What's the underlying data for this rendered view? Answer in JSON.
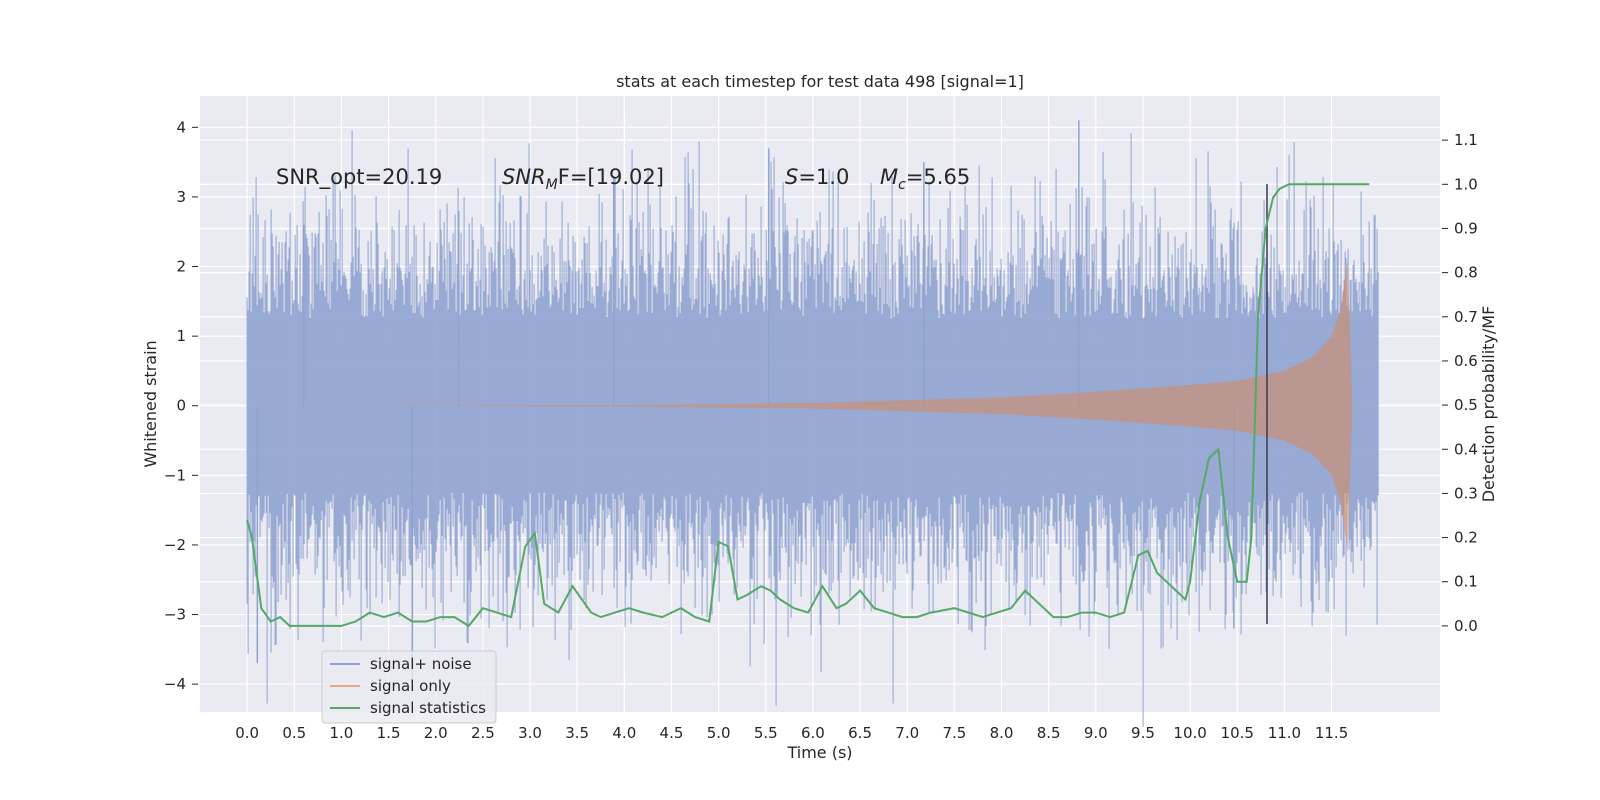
{
  "chart_data": {
    "type": "line",
    "title": "stats at each timestep for test data 498 [signal=1]",
    "xlabel": "Time (s)",
    "ylabel_left": "Whitened strain",
    "ylabel_right": "Detection probability/MF",
    "xlim": [
      -0.5,
      12.65
    ],
    "ylim_left": [
      -4.4,
      4.45
    ],
    "ylim_right": [
      -0.195,
      1.2
    ],
    "grid": true,
    "legend_position": "lower-left",
    "x_ticks": [
      "0.0",
      "0.5",
      "1.0",
      "1.5",
      "2.0",
      "2.5",
      "3.0",
      "3.5",
      "4.0",
      "4.5",
      "5.0",
      "5.5",
      "6.0",
      "6.5",
      "7.0",
      "7.5",
      "8.0",
      "8.5",
      "9.0",
      "9.5",
      "10.0",
      "10.5",
      "11.0",
      "11.5"
    ],
    "y_ticks_left": [
      "4",
      "3",
      "2",
      "1",
      "0",
      "−1",
      "−2",
      "−3",
      "−4"
    ],
    "y_ticks_right": [
      "1.1",
      "1.0",
      "0.9",
      "0.8",
      "0.7",
      "0.6",
      "0.5",
      "0.4",
      "0.3",
      "0.2",
      "0.1",
      "0.0"
    ],
    "annotations": {
      "snr_opt": "SNR_opt=20.19",
      "snr_mf_sym": "SNR",
      "snr_mf_sub": "M",
      "snr_mf_rest": "F=[19.02]",
      "s_sym": "S",
      "s_rest": "=1.0",
      "mc_sym": "M",
      "mc_sub": "c",
      "mc_rest": "=5.65"
    },
    "series": [
      {
        "name": "signal+ noise",
        "axis": "left",
        "color": "#8fa3cf",
        "x_range": [
          0.0,
          12.0
        ],
        "noise_band_sigma": 1.0,
        "note_values_approx_peaks": [
          2.6,
          2.8,
          3.3,
          3.7,
          3.5,
          4.1,
          -3.2,
          -3.7,
          -3.9
        ]
      },
      {
        "name": "signal only",
        "axis": "left",
        "color": "#dd8452",
        "x": [
          0.0,
          4.0,
          6.0,
          8.0,
          9.0,
          10.0,
          10.5,
          11.0,
          11.3,
          11.5,
          11.6,
          11.67,
          11.72
        ],
        "envelope": [
          0.0,
          0.01,
          0.04,
          0.12,
          0.2,
          0.3,
          0.36,
          0.5,
          0.7,
          1.0,
          1.4,
          2.1,
          0.05
        ]
      },
      {
        "name": "signal statistics",
        "axis": "right",
        "color": "#55a868",
        "x": [
          0.0,
          0.05,
          0.15,
          0.25,
          0.35,
          0.45,
          0.55,
          0.7,
          0.85,
          1.0,
          1.15,
          1.3,
          1.45,
          1.6,
          1.75,
          1.9,
          2.05,
          2.2,
          2.35,
          2.5,
          2.65,
          2.8,
          2.95,
          3.05,
          3.15,
          3.3,
          3.45,
          3.55,
          3.65,
          3.75,
          3.9,
          4.05,
          4.2,
          4.4,
          4.6,
          4.75,
          4.9,
          5.0,
          5.1,
          5.2,
          5.3,
          5.45,
          5.55,
          5.65,
          5.8,
          5.95,
          6.1,
          6.25,
          6.35,
          6.5,
          6.65,
          6.8,
          6.95,
          7.1,
          7.25,
          7.5,
          7.65,
          7.8,
          7.95,
          8.1,
          8.25,
          8.4,
          8.55,
          8.7,
          8.85,
          9.0,
          9.15,
          9.3,
          9.45,
          9.55,
          9.65,
          9.75,
          9.85,
          9.95,
          10.0,
          10.1,
          10.2,
          10.3,
          10.4,
          10.5,
          10.6,
          10.65,
          10.72,
          10.8,
          10.88,
          10.95,
          11.05,
          11.2,
          11.5,
          11.9
        ],
        "values": [
          0.24,
          0.2,
          0.04,
          0.01,
          0.02,
          0.0,
          0.0,
          0.0,
          0.0,
          0.0,
          0.01,
          0.03,
          0.02,
          0.03,
          0.01,
          0.01,
          0.02,
          0.02,
          0.0,
          0.04,
          0.03,
          0.02,
          0.18,
          0.21,
          0.05,
          0.03,
          0.09,
          0.06,
          0.03,
          0.02,
          0.03,
          0.04,
          0.03,
          0.02,
          0.04,
          0.02,
          0.01,
          0.19,
          0.18,
          0.06,
          0.07,
          0.09,
          0.08,
          0.06,
          0.04,
          0.03,
          0.09,
          0.04,
          0.05,
          0.08,
          0.04,
          0.03,
          0.02,
          0.02,
          0.03,
          0.04,
          0.03,
          0.02,
          0.03,
          0.04,
          0.08,
          0.05,
          0.02,
          0.02,
          0.03,
          0.03,
          0.02,
          0.03,
          0.16,
          0.17,
          0.12,
          0.1,
          0.08,
          0.06,
          0.1,
          0.28,
          0.38,
          0.4,
          0.2,
          0.1,
          0.1,
          0.2,
          0.7,
          0.9,
          0.97,
          0.99,
          1.0,
          1.0,
          1.0,
          1.0
        ]
      }
    ]
  }
}
